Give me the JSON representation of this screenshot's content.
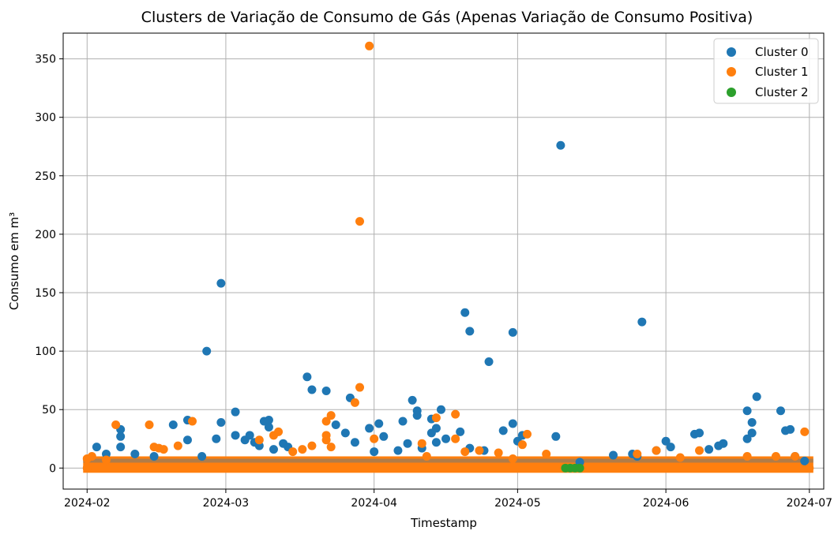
{
  "chart_data": {
    "type": "scatter",
    "title": "Clusters de Variação de Consumo de Gás (Apenas Variação de Consumo Positiva)",
    "xlabel": "Timestamp",
    "ylabel": "Consumo em m³",
    "x_ticks": [
      "2024-02",
      "2024-03",
      "2024-04",
      "2024-05",
      "2024-06",
      "2024-07"
    ],
    "y_ticks": [
      0,
      50,
      100,
      150,
      200,
      250,
      300,
      350
    ],
    "xlim": [
      "2024-01-27",
      "2024-07-04"
    ],
    "ylim": [
      -18,
      372
    ],
    "grid": true,
    "legend_position": "top-right",
    "series": [
      {
        "name": "Cluster 0",
        "color": "#1f77b4",
        "points": [
          [
            "2024-02-08",
            33
          ],
          [
            "2024-02-08",
            27
          ],
          [
            "2024-02-08",
            18
          ],
          [
            "2024-02-03",
            18
          ],
          [
            "2024-02-05",
            12
          ],
          [
            "2024-02-11",
            12
          ],
          [
            "2024-02-15",
            10
          ],
          [
            "2024-02-19",
            37
          ],
          [
            "2024-02-22",
            41
          ],
          [
            "2024-02-22",
            24
          ],
          [
            "2024-02-25",
            10
          ],
          [
            "2024-02-26",
            100
          ],
          [
            "2024-02-28",
            25
          ],
          [
            "2024-02-29",
            39
          ],
          [
            "2024-02-29",
            158
          ],
          [
            "2024-03-03",
            48
          ],
          [
            "2024-03-03",
            28
          ],
          [
            "2024-03-05",
            24
          ],
          [
            "2024-03-06",
            28
          ],
          [
            "2024-03-07",
            22
          ],
          [
            "2024-03-08",
            19
          ],
          [
            "2024-03-09",
            40
          ],
          [
            "2024-03-10",
            41
          ],
          [
            "2024-03-10",
            35
          ],
          [
            "2024-03-11",
            16
          ],
          [
            "2024-03-13",
            21
          ],
          [
            "2024-03-14",
            18
          ],
          [
            "2024-03-18",
            78
          ],
          [
            "2024-03-19",
            67
          ],
          [
            "2024-03-22",
            66
          ],
          [
            "2024-03-24",
            37
          ],
          [
            "2024-03-26",
            30
          ],
          [
            "2024-03-27",
            60
          ],
          [
            "2024-03-28",
            22
          ],
          [
            "2024-03-31",
            34
          ],
          [
            "2024-04-01",
            14
          ],
          [
            "2024-04-02",
            38
          ],
          [
            "2024-04-03",
            27
          ],
          [
            "2024-04-06",
            15
          ],
          [
            "2024-04-07",
            40
          ],
          [
            "2024-04-08",
            21
          ],
          [
            "2024-04-09",
            58
          ],
          [
            "2024-04-10",
            49
          ],
          [
            "2024-04-10",
            45
          ],
          [
            "2024-04-11",
            17
          ],
          [
            "2024-04-13",
            30
          ],
          [
            "2024-04-13",
            42
          ],
          [
            "2024-04-14",
            22
          ],
          [
            "2024-04-14",
            34
          ],
          [
            "2024-04-15",
            50
          ],
          [
            "2024-04-16",
            25
          ],
          [
            "2024-04-19",
            31
          ],
          [
            "2024-04-20",
            133
          ],
          [
            "2024-04-21",
            117
          ],
          [
            "2024-04-21",
            17
          ],
          [
            "2024-04-24",
            15
          ],
          [
            "2024-04-25",
            91
          ],
          [
            "2024-04-28",
            32
          ],
          [
            "2024-04-30",
            38
          ],
          [
            "2024-04-30",
            116
          ],
          [
            "2024-05-01",
            23
          ],
          [
            "2024-05-02",
            28
          ],
          [
            "2024-05-09",
            27
          ],
          [
            "2024-05-10",
            276
          ],
          [
            "2024-05-14",
            5
          ],
          [
            "2024-05-21",
            11
          ],
          [
            "2024-05-25",
            12
          ],
          [
            "2024-05-26",
            10
          ],
          [
            "2024-05-27",
            125
          ],
          [
            "2024-05-30",
            15
          ],
          [
            "2024-06-01",
            23
          ],
          [
            "2024-06-02",
            18
          ],
          [
            "2024-06-07",
            29
          ],
          [
            "2024-06-08",
            30
          ],
          [
            "2024-06-10",
            16
          ],
          [
            "2024-06-12",
            19
          ],
          [
            "2024-06-13",
            21
          ],
          [
            "2024-06-18",
            49
          ],
          [
            "2024-06-18",
            25
          ],
          [
            "2024-06-19",
            39
          ],
          [
            "2024-06-19",
            30
          ],
          [
            "2024-06-20",
            61
          ],
          [
            "2024-06-25",
            49
          ],
          [
            "2024-06-26",
            32
          ],
          [
            "2024-06-27",
            33
          ],
          [
            "2024-06-28",
            10
          ],
          [
            "2024-06-30",
            6
          ]
        ]
      },
      {
        "name": "Cluster 1",
        "color": "#ff7f0e",
        "points": [
          [
            "2024-02-01",
            0
          ],
          [
            "2024-02-01",
            8
          ],
          [
            "2024-02-02",
            10
          ],
          [
            "2024-02-05",
            7
          ],
          [
            "2024-02-07",
            37
          ],
          [
            "2024-02-14",
            37
          ],
          [
            "2024-02-15",
            18
          ],
          [
            "2024-02-16",
            17
          ],
          [
            "2024-02-17",
            16
          ],
          [
            "2024-02-20",
            19
          ],
          [
            "2024-02-23",
            40
          ],
          [
            "2024-03-08",
            24
          ],
          [
            "2024-03-11",
            28
          ],
          [
            "2024-03-12",
            31
          ],
          [
            "2024-03-15",
            14
          ],
          [
            "2024-03-17",
            16
          ],
          [
            "2024-03-19",
            19
          ],
          [
            "2024-03-22",
            40
          ],
          [
            "2024-03-22",
            28
          ],
          [
            "2024-03-22",
            24
          ],
          [
            "2024-03-23",
            45
          ],
          [
            "2024-03-23",
            18
          ],
          [
            "2024-03-28",
            56
          ],
          [
            "2024-03-29",
            69
          ],
          [
            "2024-03-29",
            211
          ],
          [
            "2024-03-31",
            361
          ],
          [
            "2024-04-01",
            25
          ],
          [
            "2024-04-11",
            21
          ],
          [
            "2024-04-12",
            10
          ],
          [
            "2024-04-14",
            43
          ],
          [
            "2024-04-18",
            46
          ],
          [
            "2024-04-18",
            25
          ],
          [
            "2024-04-20",
            14
          ],
          [
            "2024-04-23",
            15
          ],
          [
            "2024-04-27",
            13
          ],
          [
            "2024-04-30",
            8
          ],
          [
            "2024-05-02",
            20
          ],
          [
            "2024-05-03",
            29
          ],
          [
            "2024-05-07",
            12
          ],
          [
            "2024-05-26",
            12
          ],
          [
            "2024-05-30",
            15
          ],
          [
            "2024-06-04",
            9
          ],
          [
            "2024-06-08",
            15
          ],
          [
            "2024-06-18",
            10
          ],
          [
            "2024-06-24",
            10
          ],
          [
            "2024-06-28",
            10
          ],
          [
            "2024-06-30",
            31
          ],
          [
            "2024-07-01",
            0
          ]
        ]
      },
      {
        "name": "Cluster 2",
        "color": "#2ca02c",
        "points": [
          [
            "2024-05-11",
            0
          ],
          [
            "2024-05-12",
            0
          ],
          [
            "2024-05-13",
            0
          ],
          [
            "2024-05-14",
            0
          ]
        ]
      }
    ]
  }
}
